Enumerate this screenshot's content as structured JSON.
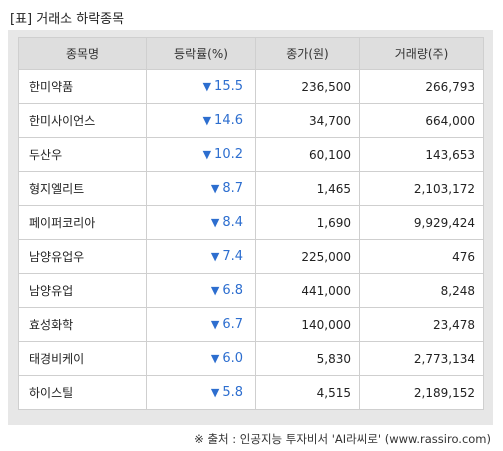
{
  "title": "[표] 거래소 하락종목",
  "headers": [
    "종목명",
    "등락률(%)",
    "종가(원)",
    "거래량(주)"
  ],
  "rows": [
    {
      "name": "한미약품",
      "rate": "15.5",
      "close": "236,500",
      "volume": "266,793"
    },
    {
      "name": "한미사이언스",
      "rate": "14.6",
      "close": "34,700",
      "volume": "664,000"
    },
    {
      "name": "두산우",
      "rate": "10.2",
      "close": "60,100",
      "volume": "143,653"
    },
    {
      "name": "형지엘리트",
      "rate": "8.7",
      "close": "1,465",
      "volume": "2,103,172"
    },
    {
      "name": "페이퍼코리아",
      "rate": "8.4",
      "close": "1,690",
      "volume": "9,929,424"
    },
    {
      "name": "남양유업우",
      "rate": "7.4",
      "close": "225,000",
      "volume": "476"
    },
    {
      "name": "남양유업",
      "rate": "6.8",
      "close": "441,000",
      "volume": "8,248"
    },
    {
      "name": "효성화학",
      "rate": "6.7",
      "close": "140,000",
      "volume": "23,478"
    },
    {
      "name": "태경비케이",
      "rate": "6.0",
      "close": "5,830",
      "volume": "2,773,134"
    },
    {
      "name": "하이스틸",
      "rate": "5.8",
      "close": "4,515",
      "volume": "2,189,152"
    }
  ],
  "down_arrow": "▼",
  "source": "※ 출처 : 인공지능 투자비서 'AI라씨로' (www.rassiro.com)",
  "colors": {
    "rate_down": "#2d6ecf",
    "header_bg": "#dedede",
    "frame_bg": "#e7e7e7"
  }
}
